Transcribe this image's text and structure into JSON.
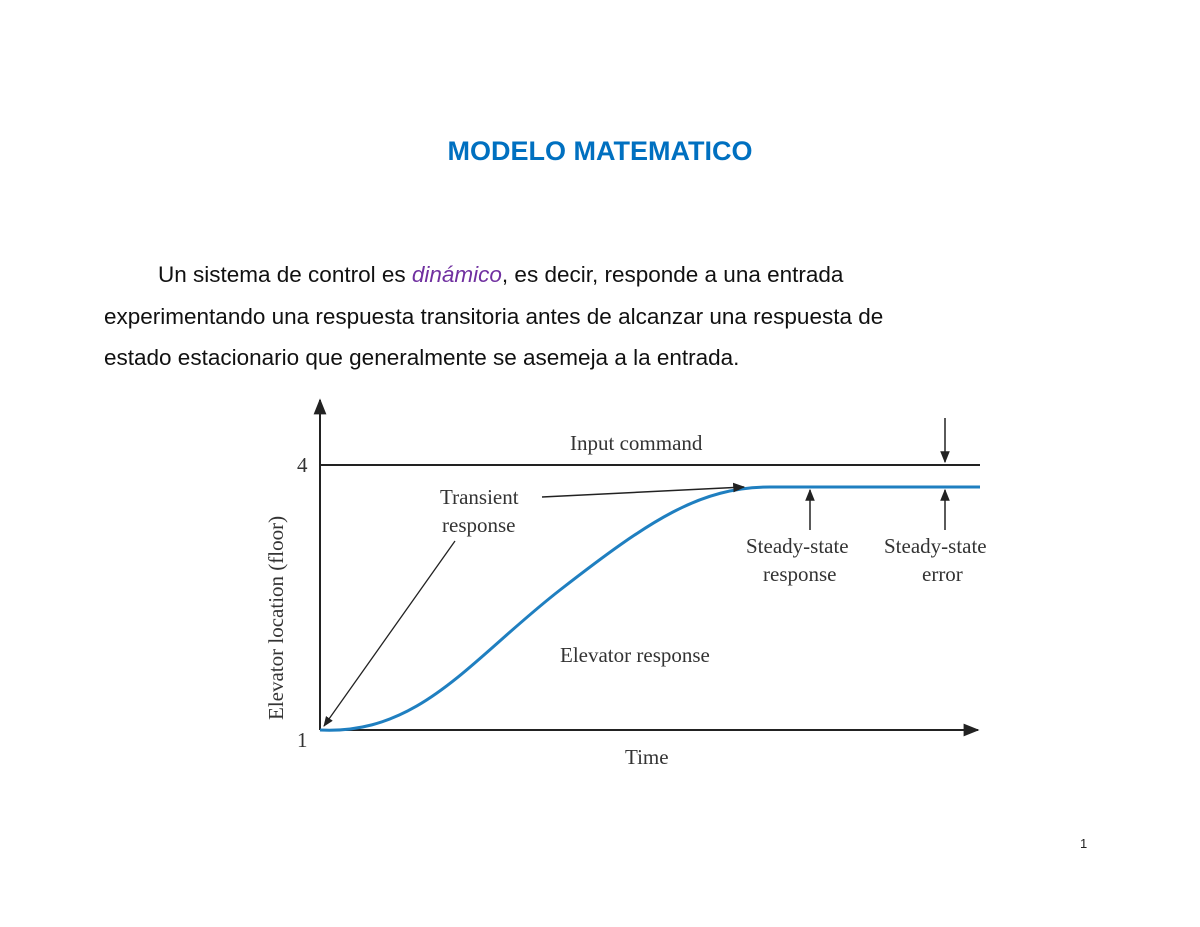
{
  "title": "MODELO MATEMATICO",
  "paragraph": {
    "line1_before": "Un sistema de control es ",
    "line1_emphasis": "dinámico",
    "line1_after": ", es decir, responde a una entrada",
    "line2": "experimentando una respuesta transitoria antes de alcanzar una respuesta de",
    "line3": "estado estacionario que generalmente se asemeja a la entrada."
  },
  "figure": {
    "y_axis_label": "Elevator location (floor)",
    "x_axis_label": "Time",
    "y_tick_top": "4",
    "y_tick_bottom": "1",
    "input_label": "Input command",
    "transient_label_1": "Transient",
    "transient_label_2": "response",
    "ss_response_1": "Steady-state",
    "ss_response_2": "response",
    "ss_error_1": "Steady-state",
    "ss_error_2": "error",
    "curve_label": "Elevator response",
    "colors": {
      "response_curve": "#1f7fc0",
      "lines": "#222222"
    }
  },
  "page_number": "1"
}
